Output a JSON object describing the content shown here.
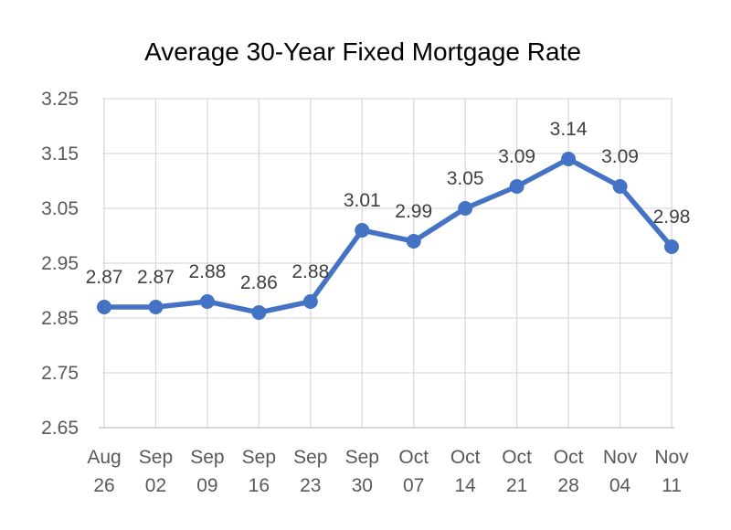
{
  "chart_data": {
    "type": "line",
    "title": "Average 30-Year Fixed Mortgage Rate",
    "xlabel": "",
    "ylabel": "",
    "categories": [
      [
        "Aug",
        "26"
      ],
      [
        "Sep",
        "02"
      ],
      [
        "Sep",
        "09"
      ],
      [
        "Sep",
        "16"
      ],
      [
        "Sep",
        "23"
      ],
      [
        "Sep",
        "30"
      ],
      [
        "Oct",
        "07"
      ],
      [
        "Oct",
        "14"
      ],
      [
        "Oct",
        "21"
      ],
      [
        "Oct",
        "28"
      ],
      [
        "Nov",
        "04"
      ],
      [
        "Nov",
        "11"
      ]
    ],
    "values": [
      2.87,
      2.87,
      2.88,
      2.86,
      2.88,
      3.01,
      2.99,
      3.05,
      3.09,
      3.14,
      3.09,
      2.98
    ],
    "data_labels": [
      "2.87",
      "2.87",
      "2.88",
      "2.86",
      "2.88",
      "3.01",
      "2.99",
      "3.05",
      "3.09",
      "3.14",
      "3.09",
      "2.98"
    ],
    "ylim": [
      2.65,
      3.25
    ],
    "yticks": [
      "3.25",
      "3.15",
      "3.05",
      "2.95",
      "2.85",
      "2.75",
      "2.65"
    ],
    "grid": true,
    "legend": "none",
    "series_color": "#4472c4"
  }
}
